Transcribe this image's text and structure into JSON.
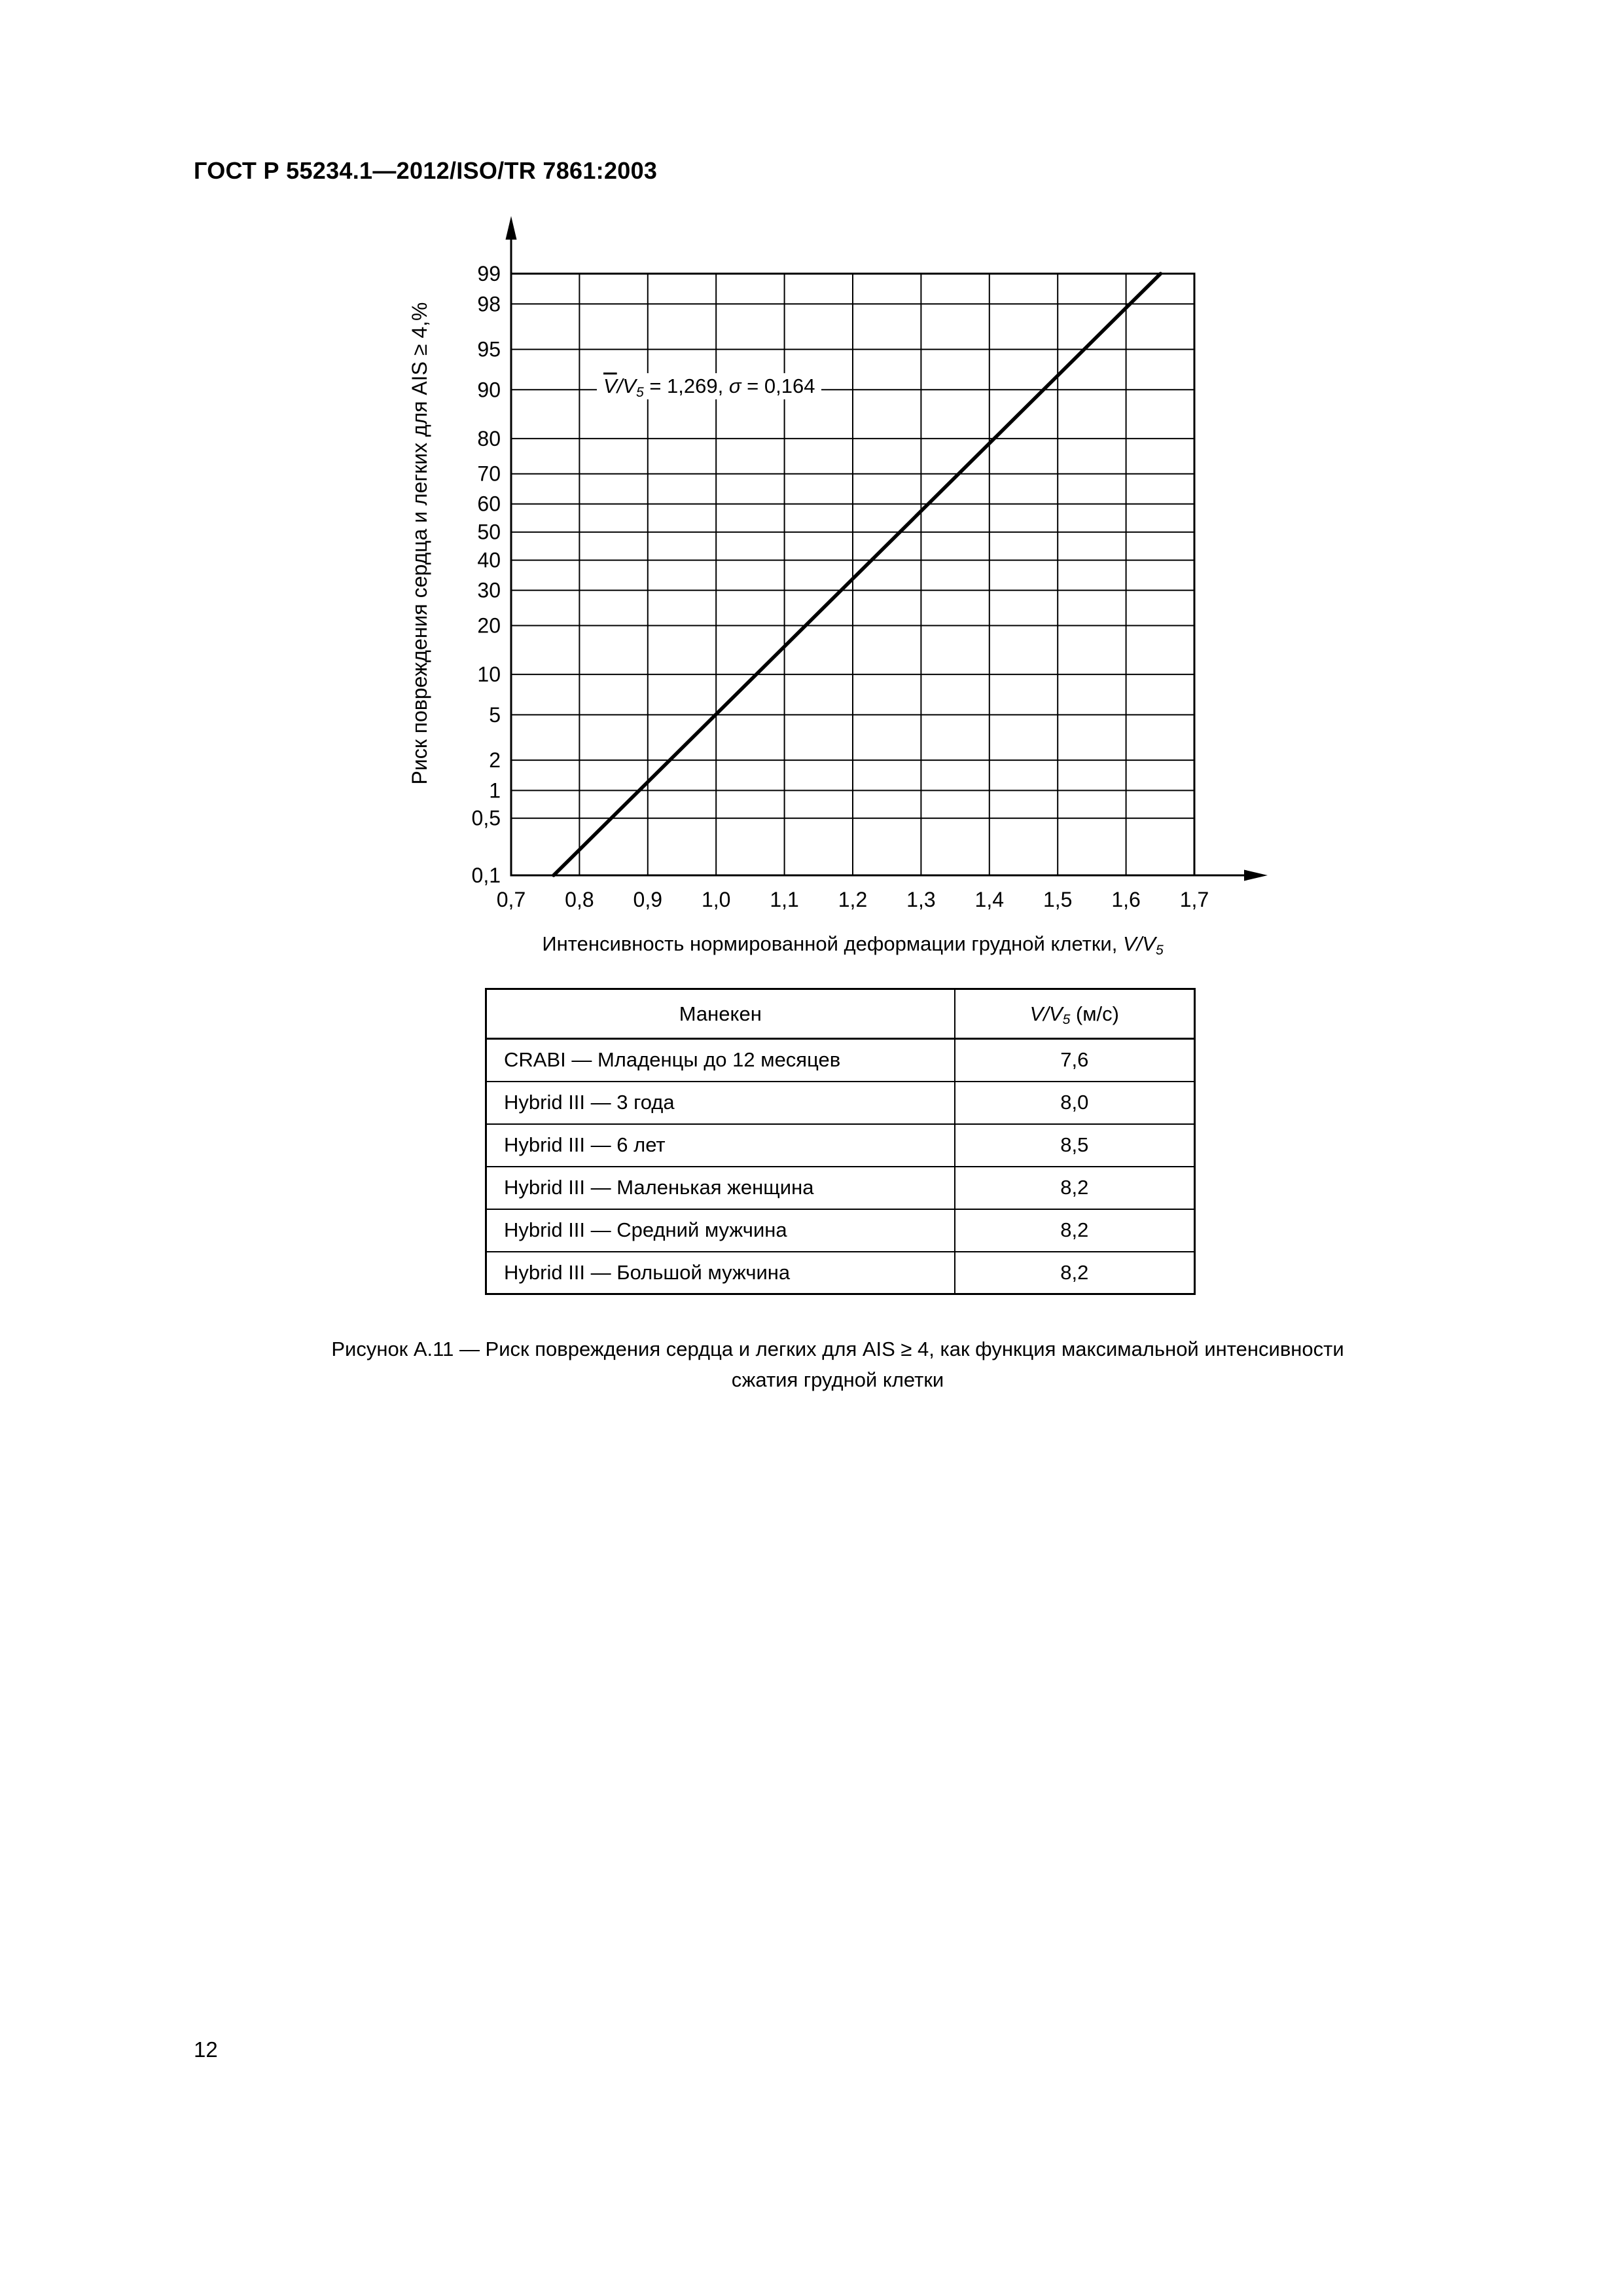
{
  "header": {
    "title": "ГОСТ Р 55234.1—2012/ISO/TR 7861:2003"
  },
  "page_number": "12",
  "chart": {
    "y_axis_title": "Риск повреждения сердца и легких для AIS ≥ 4,%",
    "x_axis_title": {
      "text": "Интенсивность нормированной деформации грудной клетки, ",
      "var": "V/V",
      "sub": "5"
    },
    "annotation": {
      "v_bar": "V",
      "over": "/V",
      "sub": "5",
      "mean": " = 1,269, ",
      "sigma": "σ",
      "sigma_val": " = 0,164"
    }
  },
  "chart_data": {
    "type": "line",
    "y_scale": "probit",
    "title": "",
    "xlabel": "Интенсивность нормированной деформации грудной клетки, V/V₅",
    "ylabel": "Риск повреждения сердца и легких для AIS ≥ 4,%",
    "annotation": "V̄/V₅ = 1,269, σ = 0,164",
    "grid": true,
    "x_range": [
      0.7,
      1.7
    ],
    "y_range": [
      0.1,
      99
    ],
    "x_ticks": [
      {
        "label": "0,7",
        "value": 0.7
      },
      {
        "label": "0,8",
        "value": 0.8
      },
      {
        "label": "0,9",
        "value": 0.9
      },
      {
        "label": "1,0",
        "value": 1.0
      },
      {
        "label": "1,1",
        "value": 1.1
      },
      {
        "label": "1,2",
        "value": 1.2
      },
      {
        "label": "1,3",
        "value": 1.3
      },
      {
        "label": "1,4",
        "value": 1.4
      },
      {
        "label": "1,5",
        "value": 1.5
      },
      {
        "label": "1,6",
        "value": 1.6
      },
      {
        "label": "1,7",
        "value": 1.7
      }
    ],
    "y_ticks": [
      {
        "label": "99",
        "value": 99
      },
      {
        "label": "98",
        "value": 98
      },
      {
        "label": "95",
        "value": 95
      },
      {
        "label": "90",
        "value": 90
      },
      {
        "label": "80",
        "value": 80
      },
      {
        "label": "70",
        "value": 70
      },
      {
        "label": "60",
        "value": 60
      },
      {
        "label": "50",
        "value": 50
      },
      {
        "label": "40",
        "value": 40
      },
      {
        "label": "30",
        "value": 30
      },
      {
        "label": "20",
        "value": 20
      },
      {
        "label": "10",
        "value": 10
      },
      {
        "label": "5",
        "value": 5
      },
      {
        "label": "2",
        "value": 2
      },
      {
        "label": "1",
        "value": 1
      },
      {
        "label": "0,5",
        "value": 0.5
      },
      {
        "label": "0,1",
        "value": 0.1
      }
    ],
    "line": {
      "mean": 1.269,
      "sigma": 0.164,
      "from_point": [
        0.762,
        0.1
      ],
      "to_point": [
        1.65,
        99
      ]
    }
  },
  "table": {
    "header": {
      "col1": "Манекен",
      "col2": {
        "var": "V/V",
        "sub": "5",
        "unit": " (м/с)"
      }
    },
    "rows": [
      {
        "dummy": "CRABI — Младенцы до 12 месяцев",
        "value": "7,6"
      },
      {
        "dummy": "Hybrid III — 3 года",
        "value": "8,0"
      },
      {
        "dummy": "Hybrid III — 6 лет",
        "value": "8,5"
      },
      {
        "dummy": "Hybrid III — Маленькая женщина",
        "value": "8,2"
      },
      {
        "dummy": "Hybrid III — Средний мужчина",
        "value": "8,2"
      },
      {
        "dummy": "Hybrid III — Большой мужчина",
        "value": "8,2"
      }
    ]
  },
  "caption": {
    "line1": "Рисунок А.11 — Риск повреждения сердца и легких для AIS ≥ 4, как функция максимальной интенсивности",
    "line2": "сжатия грудной клетки"
  }
}
